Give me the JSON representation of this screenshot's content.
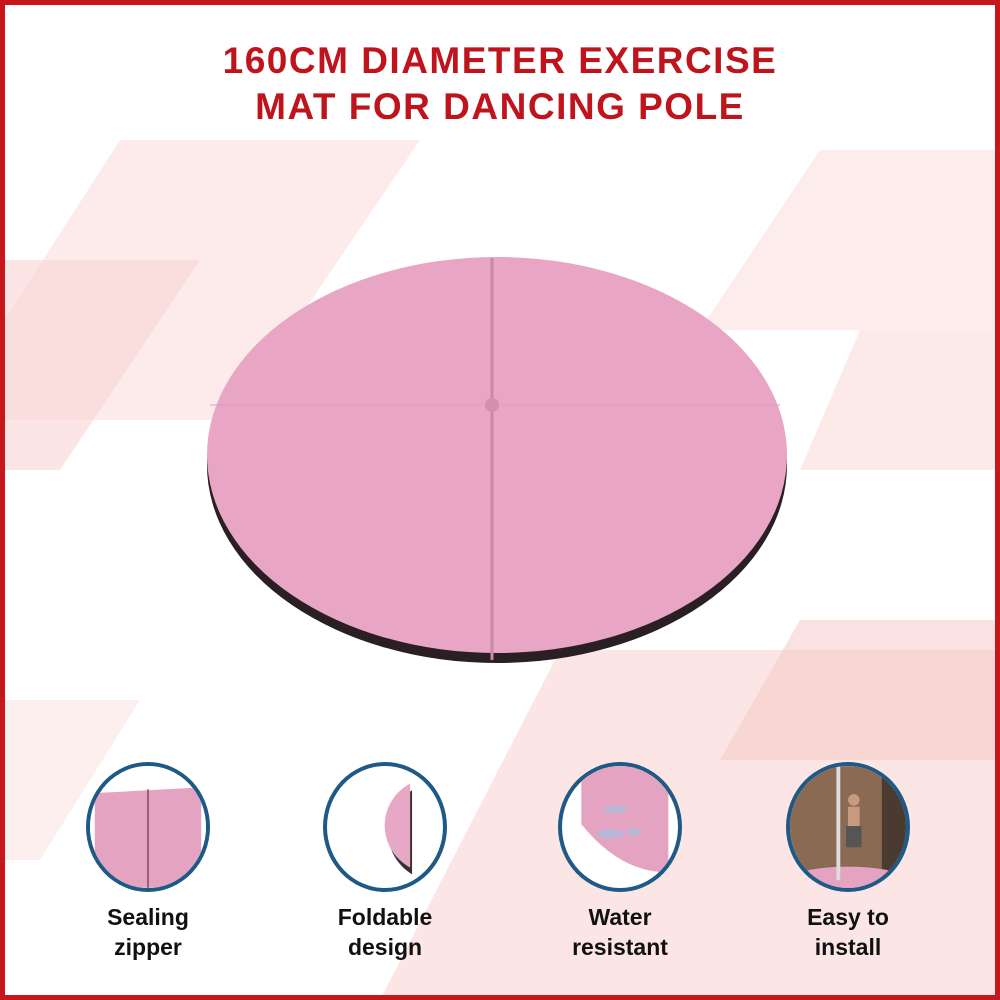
{
  "title": {
    "line1": "160CM DIAMETER EXERCISE",
    "line2": "MAT FOR DANCING POLE"
  },
  "colors": {
    "border": "#c8161d",
    "title": "#c0141c",
    "mat": "#e8a6c4",
    "circle_border": "#1e5a85"
  },
  "features": [
    {
      "icon": "sealing-zipper-image",
      "line1": "Sealing",
      "line2": "zipper"
    },
    {
      "icon": "foldable-design-image",
      "line1": "Foldable",
      "line2": "design"
    },
    {
      "icon": "water-resistant-image",
      "line1": "Water",
      "line2": "resistant"
    },
    {
      "icon": "easy-install-image",
      "line1": "Easy to",
      "line2": "install"
    }
  ]
}
